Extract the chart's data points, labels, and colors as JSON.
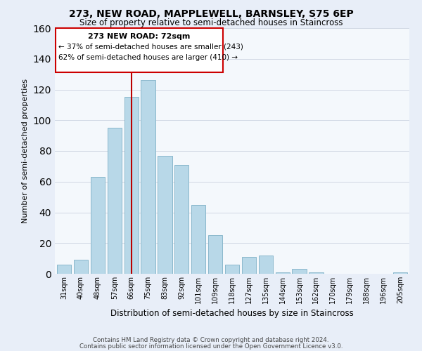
{
  "title1": "273, NEW ROAD, MAPPLEWELL, BARNSLEY, S75 6EP",
  "title2": "Size of property relative to semi-detached houses in Staincross",
  "xlabel": "Distribution of semi-detached houses by size in Staincross",
  "ylabel": "Number of semi-detached properties",
  "categories": [
    "31sqm",
    "40sqm",
    "48sqm",
    "57sqm",
    "66sqm",
    "75sqm",
    "83sqm",
    "92sqm",
    "101sqm",
    "109sqm",
    "118sqm",
    "127sqm",
    "135sqm",
    "144sqm",
    "153sqm",
    "162sqm",
    "170sqm",
    "179sqm",
    "188sqm",
    "196sqm",
    "205sqm"
  ],
  "values": [
    6,
    9,
    63,
    95,
    115,
    126,
    77,
    71,
    45,
    25,
    6,
    11,
    12,
    1,
    3,
    1,
    0,
    0,
    0,
    0,
    1
  ],
  "bar_color": "#b8d8e8",
  "bar_edge_color": "#8ab8cc",
  "vline_x_index": 4.5,
  "vline_color": "#bb0000",
  "annotation_box_text": "273 NEW ROAD: 72sqm",
  "annotation_line1": "← 37% of semi-detached houses are smaller (243)",
  "annotation_line2": "62% of semi-detached houses are larger (410) →",
  "annotation_box_edge_color": "#cc0000",
  "ylim": [
    0,
    160
  ],
  "yticks": [
    0,
    20,
    40,
    60,
    80,
    100,
    120,
    140,
    160
  ],
  "footer1": "Contains HM Land Registry data © Crown copyright and database right 2024.",
  "footer2": "Contains public sector information licensed under the Open Government Licence v3.0.",
  "bg_color": "#e8eef8",
  "plot_bg_color": "#f4f8fc",
  "grid_color": "#d0d8e4"
}
